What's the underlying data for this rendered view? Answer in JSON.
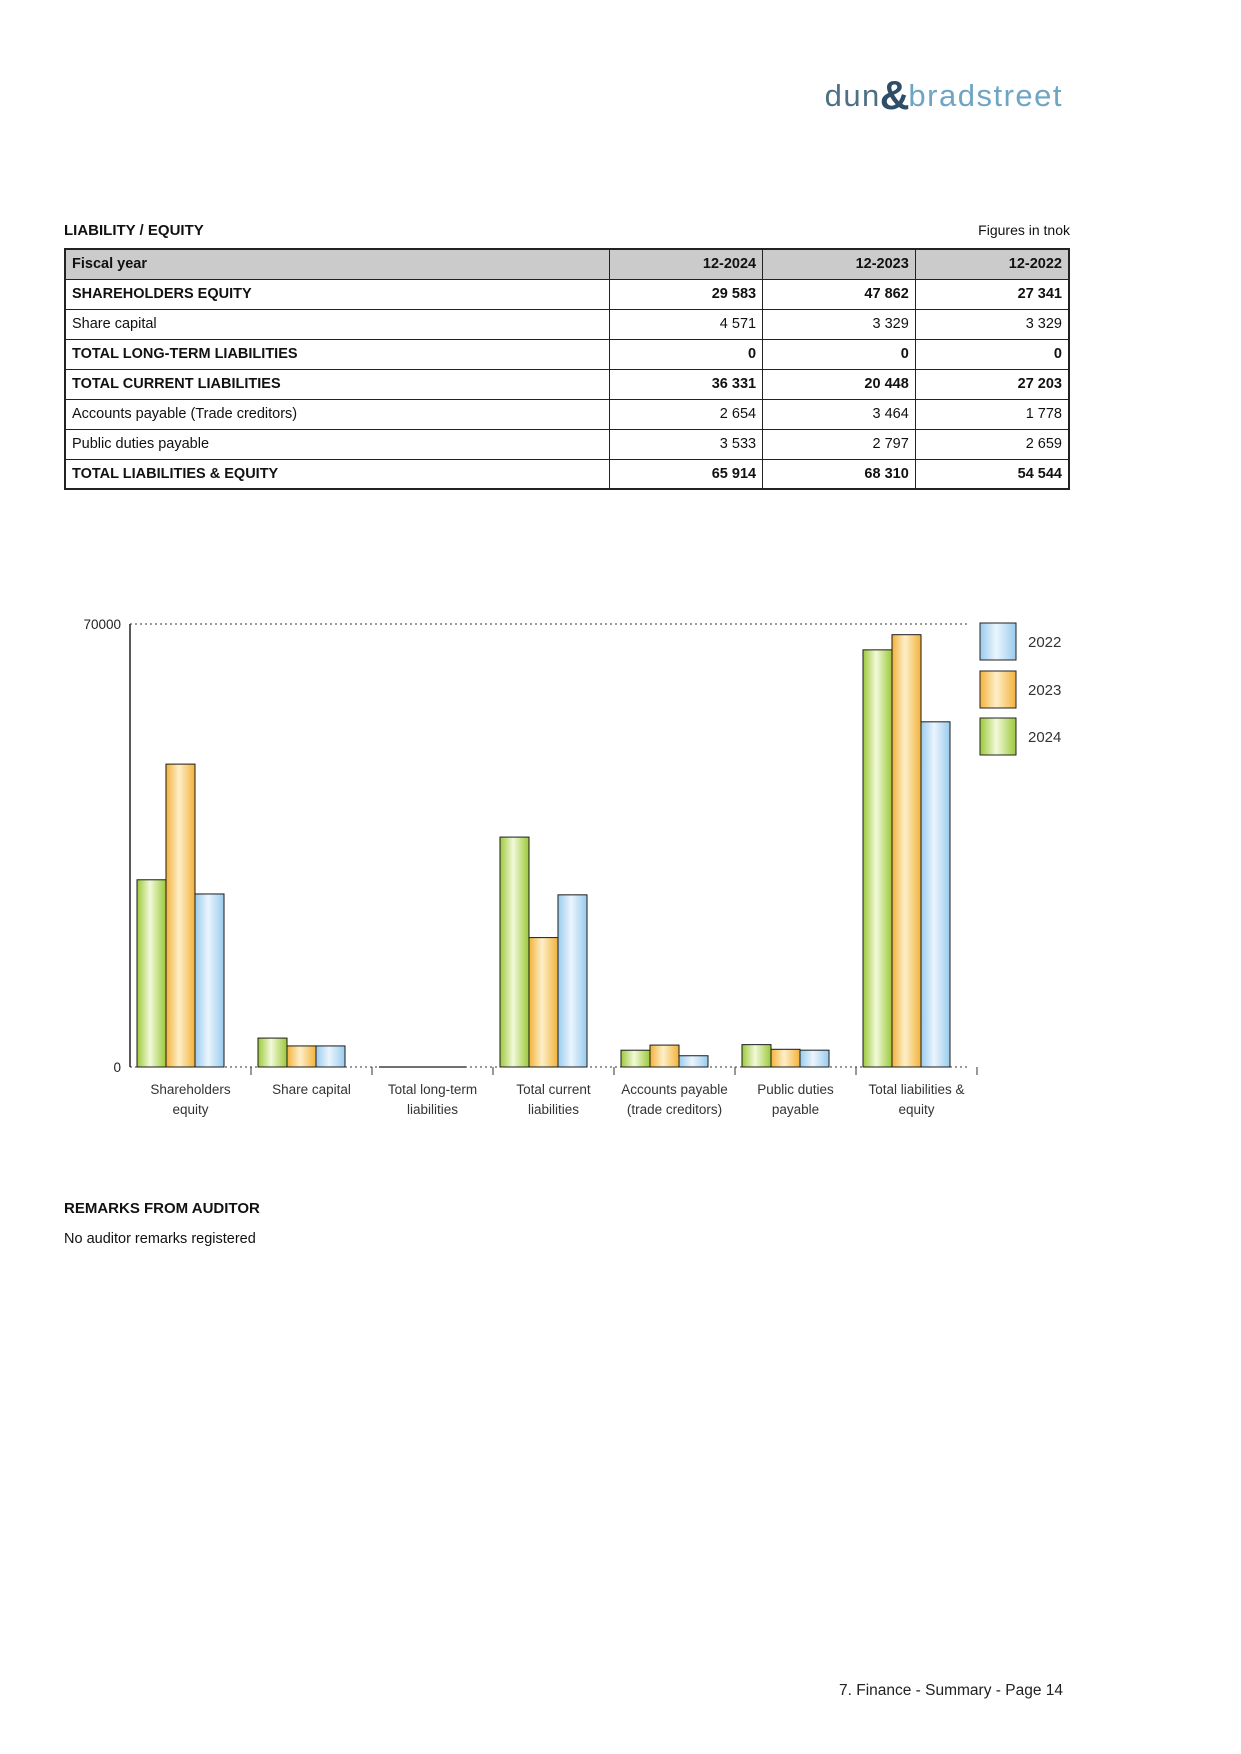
{
  "logo": {
    "part1": "dun",
    "ampersand": "&",
    "part2": "bradstreet"
  },
  "section": {
    "title": "LIABILITY / EQUITY",
    "units_note": "Figures in tnok"
  },
  "table": {
    "header": [
      "Fiscal year",
      "12-2024",
      "12-2023",
      "12-2022"
    ],
    "rows": [
      {
        "label": "SHAREHOLDERS EQUITY",
        "bold": true,
        "values": [
          "29 583",
          "47 862",
          "27 341"
        ]
      },
      {
        "label": "Share capital",
        "bold": false,
        "values": [
          "4 571",
          "3 329",
          "3 329"
        ]
      },
      {
        "label": "TOTAL LONG-TERM LIABILITIES",
        "bold": true,
        "values": [
          "0",
          "0",
          "0"
        ]
      },
      {
        "label": "TOTAL CURRENT LIABILITIES",
        "bold": true,
        "values": [
          "36 331",
          "20 448",
          "27 203"
        ]
      },
      {
        "label": "Accounts payable (Trade creditors)",
        "bold": false,
        "values": [
          "2 654",
          "3 464",
          "1 778"
        ]
      },
      {
        "label": "Public duties payable",
        "bold": false,
        "values": [
          "3 533",
          "2 797",
          "2 659"
        ]
      },
      {
        "label": "TOTAL LIABILITIES & EQUITY",
        "bold": true,
        "values": [
          "65 914",
          "68 310",
          "54 544"
        ]
      }
    ]
  },
  "chart_data": {
    "type": "bar",
    "title": "",
    "xlabel": "",
    "ylabel": "",
    "ylim": [
      0,
      70000
    ],
    "yticks": [
      0,
      70000
    ],
    "grid": "dotted-top-and-baseline",
    "legend_position": "right",
    "categories": [
      [
        "Shareholders",
        "equity"
      ],
      [
        "Share capital",
        ""
      ],
      [
        "Total long-term",
        "liabilities"
      ],
      [
        "Total current",
        "liabilities"
      ],
      [
        "Accounts payable",
        "(trade creditors)"
      ],
      [
        "Public duties",
        "payable"
      ],
      [
        "Total liabilities &",
        "equity"
      ]
    ],
    "bar_order": [
      "2024",
      "2023",
      "2022"
    ],
    "legend_order": [
      "2022",
      "2023",
      "2024"
    ],
    "series": [
      {
        "name": "2024",
        "color": "#9cc93a",
        "color_light": "#f2f9da",
        "values": [
          29583,
          4571,
          0,
          36331,
          2654,
          3533,
          65914
        ]
      },
      {
        "name": "2023",
        "color": "#f3b23a",
        "color_light": "#fdefc9",
        "values": [
          47862,
          3329,
          0,
          20448,
          3464,
          2797,
          68310
        ]
      },
      {
        "name": "2022",
        "color": "#99cbee",
        "color_light": "#ebf5fd",
        "values": [
          27341,
          3329,
          0,
          27203,
          1778,
          2659,
          54544
        ]
      }
    ]
  },
  "remarks": {
    "title": "REMARKS FROM AUDITOR",
    "body": "No auditor remarks registered"
  },
  "footer": {
    "text": "7. Finance - Summary - Page 14"
  },
  "colors": {
    "logo_dun": "#4e7084",
    "logo_amp": "#2e4d68",
    "logo_bradstreet": "#6fa5c4",
    "table_header_bg": "#cbcbcb",
    "axis": "#222222",
    "text": "#111111"
  }
}
